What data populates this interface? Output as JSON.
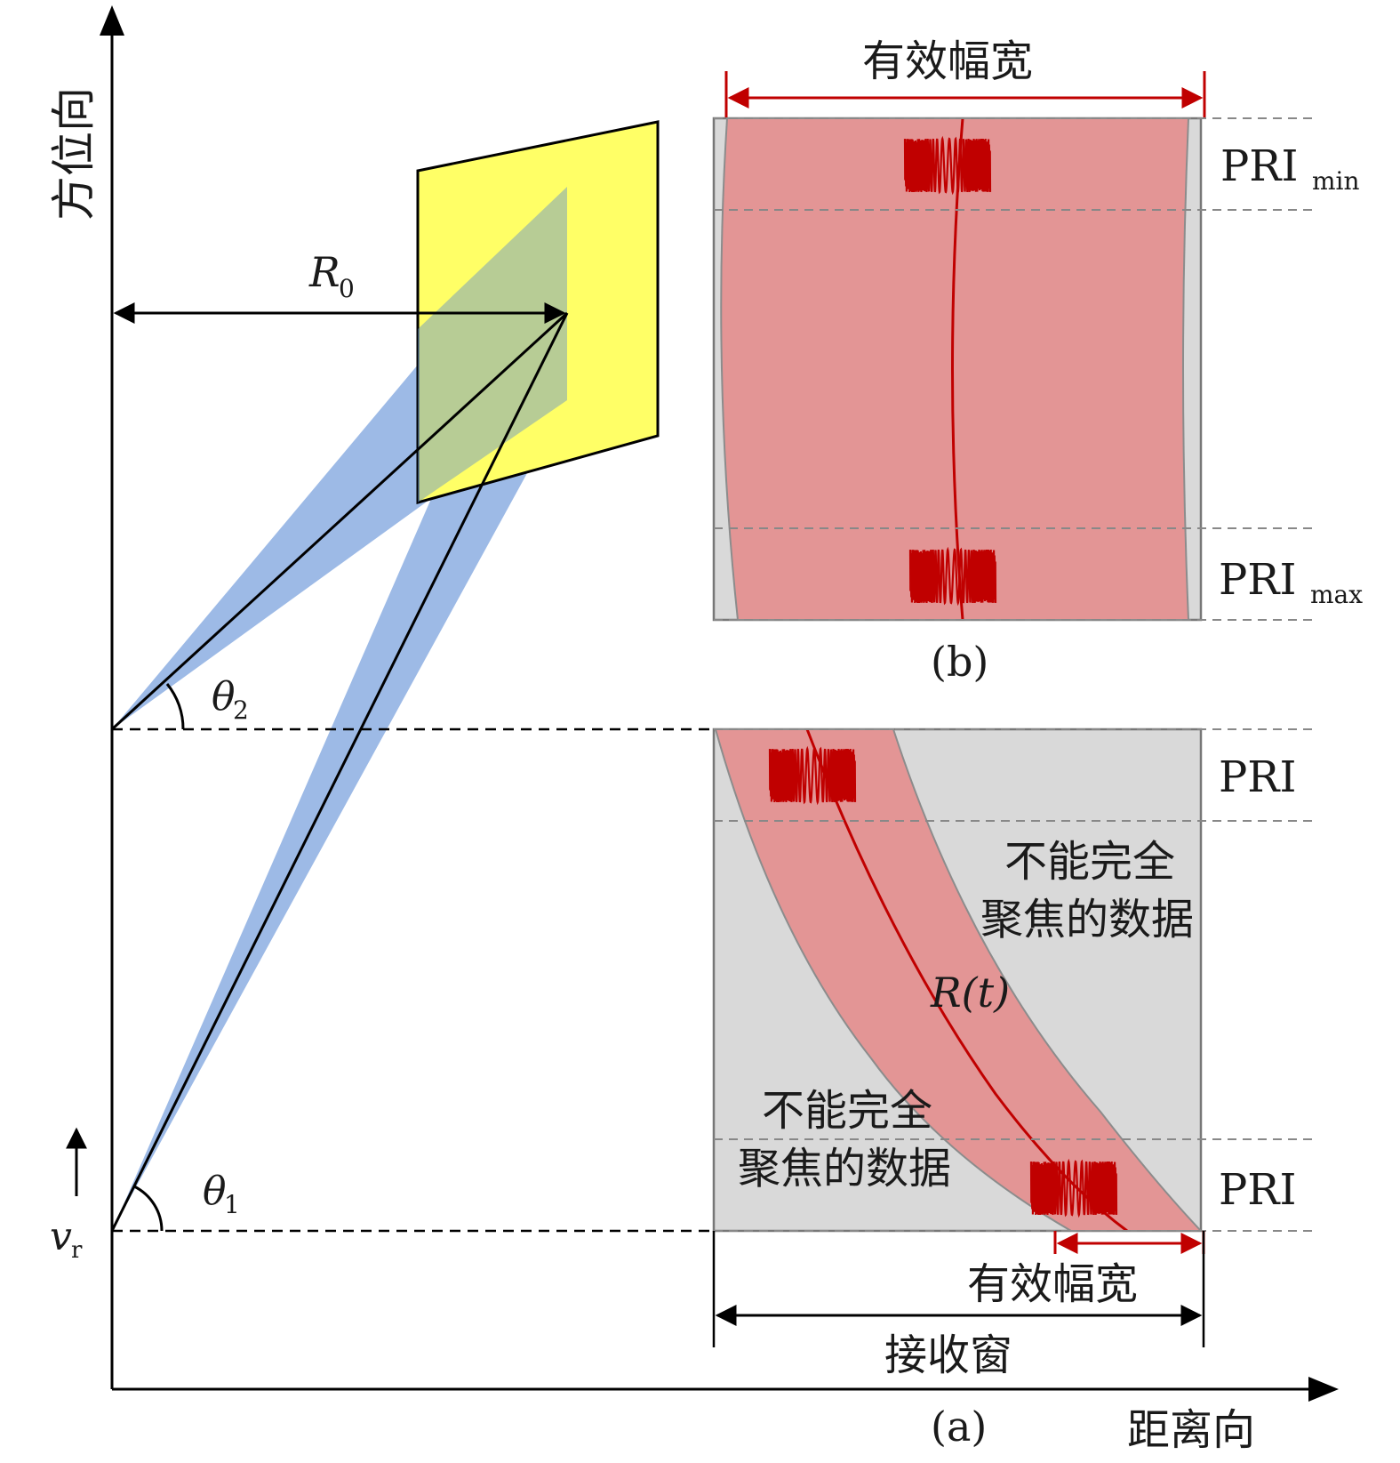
{
  "axes": {
    "azimuth_label": "方位向",
    "range_label": "距离向",
    "velocity_symbol": "v",
    "velocity_sub": "r"
  },
  "geometry": {
    "r0_symbol": "R",
    "r0_sub": "0",
    "theta2_symbol": "θ",
    "theta2_sub": "2",
    "theta1_symbol": "θ",
    "theta1_sub": "1"
  },
  "panel_b": {
    "caption": "(b)",
    "swath_label": "有效幅宽",
    "pri_min_main": "PRI",
    "pri_min_sub": "min",
    "pri_max_main": "PRI",
    "pri_max_sub": "max"
  },
  "panel_a": {
    "caption": "(a)",
    "pri_top": "PRI",
    "pri_bottom": "PRI",
    "unfocused_upper": [
      "不能完全",
      "聚焦的数据"
    ],
    "unfocused_lower": [
      "不能完全",
      "聚焦的数据"
    ],
    "rt_label": "R(t)",
    "swath_label": "有效幅宽",
    "receive_window_label": "接收窗"
  },
  "colors": {
    "beam": "#92b2e3",
    "target_patch": "#ffff66",
    "echo_band": "#e39595",
    "echo_curve": "#c00000",
    "window_bg": "#d9d9d9"
  }
}
